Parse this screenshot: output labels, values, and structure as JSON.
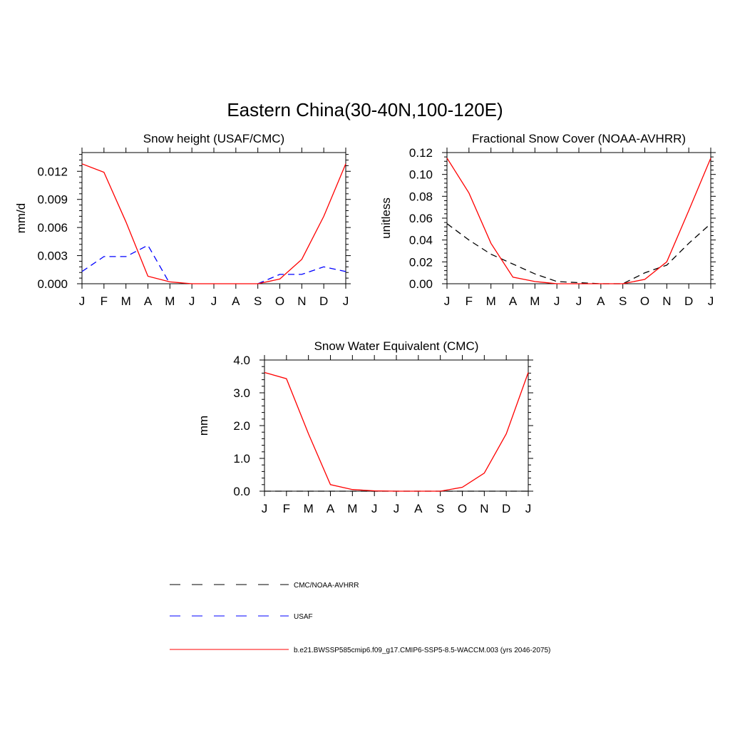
{
  "page_title": "Eastern China(30-40N,100-120E)",
  "legend": [
    {
      "label": "CMC/NOAA-AVHRR",
      "color": "#000000",
      "dash": true
    },
    {
      "label": "USAF",
      "color": "#0000ff",
      "dash": true
    },
    {
      "label": "b.e21.BWSSP585cmip6.f09_g17.CMIP6-SSP5-8.5-WACCM.003 (yrs 2046-2075)",
      "color": "#ff0000",
      "dash": false
    }
  ],
  "chart_data": [
    {
      "type": "line",
      "title": "Snow height (USAF/CMC)",
      "xlabel": "",
      "ylabel": "mm/d",
      "categories": [
        "J",
        "F",
        "M",
        "A",
        "M",
        "J",
        "J",
        "A",
        "S",
        "O",
        "N",
        "D",
        "J"
      ],
      "ylim": [
        0,
        0.014
      ],
      "yticks": [
        "0.000",
        "0.003",
        "0.006",
        "0.009",
        "0.012"
      ],
      "yticks_values": [
        0,
        0.003,
        0.006,
        0.009,
        0.012
      ],
      "series": [
        {
          "color": "#ff0000",
          "dash": false,
          "values": [
            0.0128,
            0.0119,
            0.0066,
            0.0008,
            0.0002,
            0.0,
            0.0,
            0.0,
            0.0,
            0.0005,
            0.0026,
            0.0072,
            0.0128
          ]
        },
        {
          "color": "#0000ff",
          "dash": true,
          "values": [
            0.0013,
            0.0029,
            0.0029,
            0.0041,
            0.0,
            null,
            null,
            null,
            0.0,
            0.001,
            0.001,
            0.0018,
            0.0013
          ]
        }
      ]
    },
    {
      "type": "line",
      "title": "Fractional Snow Cover (NOAA-AVHRR)",
      "xlabel": "",
      "ylabel": "unitless",
      "categories": [
        "J",
        "F",
        "M",
        "A",
        "M",
        "J",
        "J",
        "A",
        "S",
        "O",
        "N",
        "D",
        "J"
      ],
      "ylim": [
        0,
        0.12
      ],
      "yticks": [
        "0.00",
        "0.02",
        "0.04",
        "0.06",
        "0.08",
        "0.10",
        "0.12"
      ],
      "yticks_values": [
        0,
        0.02,
        0.04,
        0.06,
        0.08,
        0.1,
        0.12
      ],
      "series": [
        {
          "color": "#ff0000",
          "dash": false,
          "values": [
            0.115,
            0.083,
            0.037,
            0.006,
            0.002,
            0.0,
            0.0,
            0.0,
            0.0,
            0.004,
            0.02,
            0.067,
            0.115
          ]
        },
        {
          "color": "#000000",
          "dash": true,
          "values": [
            0.055,
            0.04,
            0.027,
            0.018,
            0.009,
            0.002,
            0.001,
            0.0,
            0.0,
            0.01,
            0.017,
            0.037,
            0.055
          ]
        }
      ]
    },
    {
      "type": "line",
      "title": "Snow Water Equivalent (CMC)",
      "xlabel": "",
      "ylabel": "mm",
      "categories": [
        "J",
        "F",
        "M",
        "A",
        "M",
        "J",
        "J",
        "A",
        "S",
        "O",
        "N",
        "D",
        "J"
      ],
      "ylim": [
        0,
        4
      ],
      "yticks": [
        "0.0",
        "1.0",
        "2.0",
        "3.0",
        "4.0"
      ],
      "yticks_values": [
        0,
        1,
        2,
        3,
        4
      ],
      "series": [
        {
          "color": "#ff0000",
          "dash": false,
          "values": [
            3.62,
            3.43,
            1.75,
            0.2,
            0.05,
            0.01,
            0.0,
            0.0,
            0.0,
            0.12,
            0.55,
            1.75,
            3.62
          ]
        },
        {
          "color": "#000000",
          "dash": true,
          "values": [
            0,
            0,
            0,
            0,
            0,
            0,
            0,
            0,
            0,
            0,
            0,
            0,
            0
          ]
        }
      ]
    }
  ]
}
